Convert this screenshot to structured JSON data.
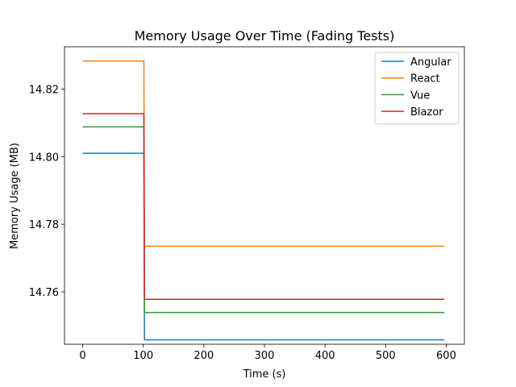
{
  "chart_data": {
    "type": "line",
    "title": "Memory Usage Over Time (Fading Tests)",
    "xlabel": "Time (s)",
    "ylabel": "Memory Usage (MB)",
    "xlim": [
      -30,
      630
    ],
    "ylim": [
      14.7445,
      14.8325
    ],
    "xticks": [
      0,
      100,
      200,
      300,
      400,
      500,
      600
    ],
    "yticks": [
      14.76,
      14.78,
      14.8,
      14.82
    ],
    "ytick_labels": [
      "14.76",
      "14.78",
      "14.80",
      "14.82"
    ],
    "grid": false,
    "legend": "top-right",
    "series": [
      {
        "name": "Angular",
        "color": "#1f77b4",
        "x": [
          0,
          100,
          101,
          102,
          103,
          597
        ],
        "y": [
          14.801,
          14.801,
          14.801,
          14.7458,
          14.7458,
          14.7458
        ]
      },
      {
        "name": "React",
        "color": "#ff7f0e",
        "x": [
          0,
          100,
          101,
          102,
          103,
          597
        ],
        "y": [
          14.8283,
          14.8283,
          14.8283,
          14.7735,
          14.7735,
          14.7735
        ]
      },
      {
        "name": "Vue",
        "color": "#2ca02c",
        "x": [
          0,
          100,
          101,
          102,
          103,
          597
        ],
        "y": [
          14.8088,
          14.8088,
          14.8088,
          14.7539,
          14.7539,
          14.7539
        ]
      },
      {
        "name": "Blazor",
        "color": "#d62728",
        "x": [
          0,
          100,
          101,
          102,
          103,
          597
        ],
        "y": [
          14.8127,
          14.8127,
          14.8127,
          14.7578,
          14.7578,
          14.7578
        ]
      }
    ]
  }
}
